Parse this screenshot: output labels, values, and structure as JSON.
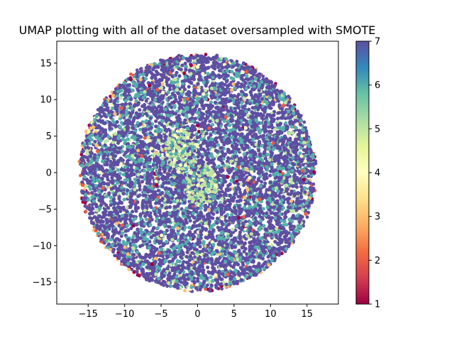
{
  "chart_data": {
    "type": "scatter",
    "title": "UMAP plotting with all of the dataset oversampled with SMOTE",
    "xlabel": "",
    "ylabel": "",
    "xlim": [
      -19.3,
      19.3
    ],
    "ylim": [
      -18.0,
      18.0
    ],
    "xticks": [
      -15,
      -10,
      -5,
      0,
      5,
      10,
      15
    ],
    "yticks": [
      -15,
      -10,
      -5,
      0,
      5,
      10,
      15
    ],
    "grid": false,
    "point_cloud": {
      "shape": "disk",
      "center": [
        0.0,
        0.0
      ],
      "radius": 16.3,
      "dominant_class": 7,
      "class_mix": {
        "7": 0.7,
        "6": 0.2,
        "5": 0.05,
        "4": 0.02,
        "3": 0.015,
        "2": 0.01,
        "1": 0.005
      },
      "rim_classes": [
        1,
        2,
        3
      ],
      "inner_clusters": [
        {
          "center": [
            0.5,
            -1.8
          ],
          "class": 5
        },
        {
          "center": [
            -2.2,
            3.2
          ],
          "class": 5
        }
      ]
    },
    "colorbar": {
      "label": "",
      "range": [
        1,
        7
      ],
      "ticks": [
        1,
        2,
        3,
        4,
        5,
        6,
        7
      ],
      "colormap": "Spectral",
      "stops": [
        "#9e0142",
        "#d53e4f",
        "#f46d43",
        "#fdae61",
        "#fee08b",
        "#ffffbf",
        "#e6f598",
        "#abdda4",
        "#66c2a5",
        "#3288bd",
        "#5e4fa2"
      ]
    }
  }
}
